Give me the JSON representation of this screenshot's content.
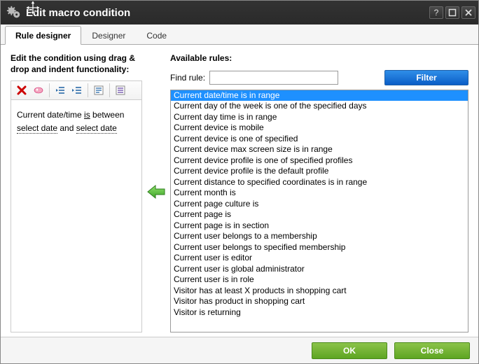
{
  "title": "Edit macro condition",
  "tabs": [
    {
      "label": "Rule designer",
      "active": true
    },
    {
      "label": "Designer",
      "active": false
    },
    {
      "label": "Code",
      "active": false
    }
  ],
  "left": {
    "heading": "Edit the condition using drag & drop and indent functionality:",
    "sentence_prefix": "Current date/time ",
    "sentence_verb": "is",
    "sentence_mid": " between ",
    "sentence_sel1": "select date",
    "sentence_and": " and ",
    "sentence_sel2": "select date"
  },
  "right": {
    "heading": "Available rules:",
    "find_label": "Find rule:",
    "filter_label": "Filter",
    "selected_index": 0,
    "rules": [
      "Current date/time is in range",
      "Current day of the week is one of the specified days",
      "Current day time is in range",
      "Current device is mobile",
      "Current device is one of specified",
      "Current device max screen size is in range",
      "Current device profile is one of specified profiles",
      "Current device profile is the default profile",
      "Current distance to specified coordinates is in range",
      "Current month is",
      "Current page culture is",
      "Current page is",
      "Current page is in section",
      "Current user belongs to a membership",
      "Current user belongs to specified membership",
      "Current user is editor",
      "Current user is global administrator",
      "Current user is in role",
      "Visitor has at least X products in shopping cart",
      "Visitor has product in shopping cart",
      "Visitor is returning"
    ]
  },
  "footer": {
    "ok": "OK",
    "close": "Close"
  },
  "colors": {
    "select_bg": "#1e90ff",
    "green_btn_top": "#8bc34a",
    "green_btn_bottom": "#5ea522",
    "blue_btn_top": "#2f8ee8",
    "blue_btn_bottom": "#0b5ec7"
  }
}
